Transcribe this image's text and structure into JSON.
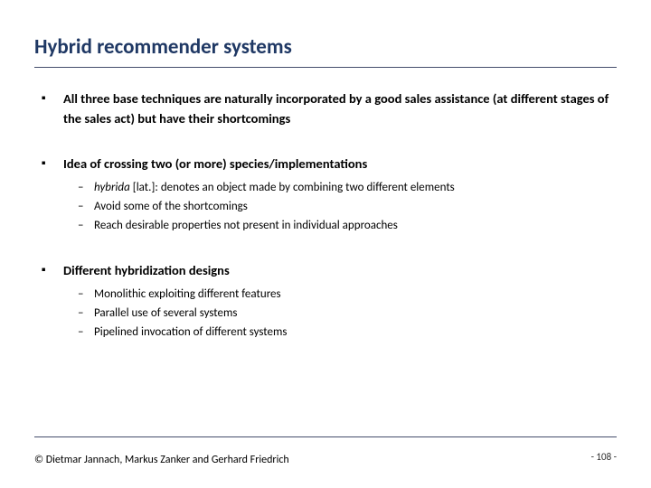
{
  "title_color": "#1f3864",
  "rule_color": "#444d6b",
  "background_color": "#ffffff",
  "title": "Hybrid recommender systems",
  "items": [
    {
      "text": "All three base techniques are naturally incorporated by a good sales assistance (at different stages of the sales act) but have their shortcomings",
      "subs": []
    },
    {
      "text": "Idea of crossing two (or more) species/implementations",
      "subs": [
        {
          "italic_prefix": "hybrida",
          "rest": " [lat.]: denotes an object made by combining two different elements"
        },
        {
          "rest": "Avoid some of the shortcomings"
        },
        {
          "rest": "Reach desirable properties not present in individual approaches"
        }
      ]
    },
    {
      "text": "Different hybridization designs",
      "subs": [
        {
          "rest": "Monolithic exploiting different features"
        },
        {
          "rest": "Parallel use of several systems"
        },
        {
          "rest": "Pipelined invocation of different systems"
        }
      ]
    }
  ],
  "copyright": "© Dietmar Jannach, Markus Zanker and Gerhard Friedrich",
  "page_number": "- 108 -"
}
